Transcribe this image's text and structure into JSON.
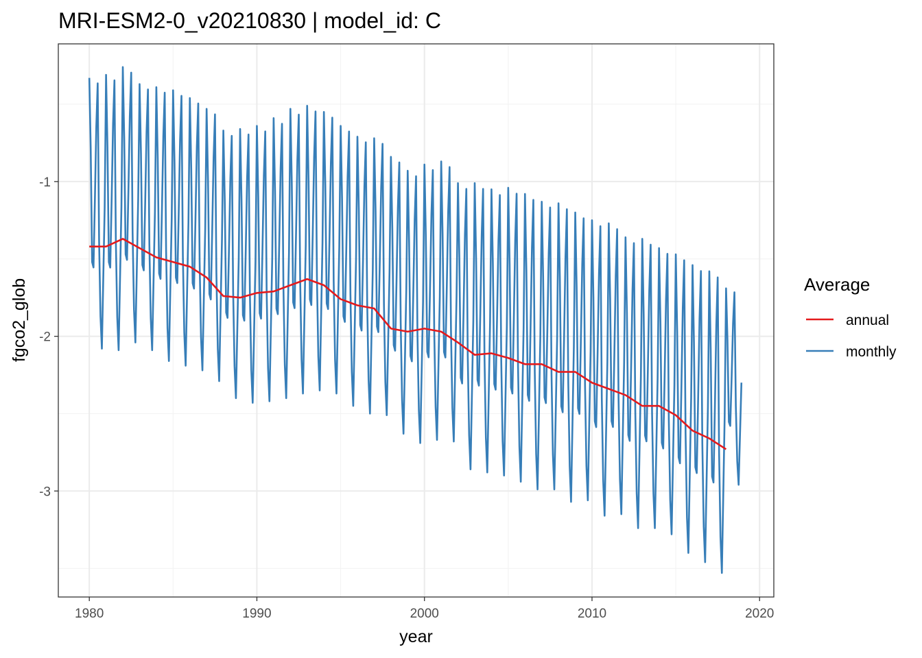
{
  "chart_data": {
    "type": "line",
    "title": "MRI-ESM2-0_v20210830 | model_id: C",
    "xlabel": "year",
    "ylabel": "fgco2_glob",
    "xlim": [
      1978.15,
      2020.85
    ],
    "ylim": [
      -3.685,
      -0.11
    ],
    "x_ticks": [
      1980,
      1990,
      2000,
      2010,
      2020
    ],
    "x_tick_labels": [
      "1980",
      "1990",
      "2000",
      "2010",
      "2020"
    ],
    "y_ticks": [
      -1,
      -2,
      -3
    ],
    "y_tick_labels": [
      "-1",
      "-2",
      "-3"
    ],
    "grid": true,
    "legend": {
      "title": "Average",
      "position": "right",
      "entries": [
        {
          "label": "annual",
          "color": "#e41a1c"
        },
        {
          "label": "monthly",
          "color": "#377eb8"
        }
      ]
    },
    "monthly_shape": [
      1.0,
      0.74,
      0.32,
      0.3,
      0.55,
      0.82,
      0.98,
      0.4,
      0.12,
      0.0,
      0.26,
      0.52
    ],
    "series": [
      {
        "name": "annual",
        "color": "#e41a1c",
        "x": [
          1980,
          1981,
          1982,
          1983,
          1984,
          1985,
          1986,
          1987,
          1988,
          1989,
          1990,
          1991,
          1992,
          1993,
          1994,
          1995,
          1996,
          1997,
          1998,
          1999,
          2000,
          2001,
          2002,
          2003,
          2004,
          2005,
          2006,
          2007,
          2008,
          2009,
          2010,
          2011,
          2012,
          2013,
          2014,
          2015,
          2016,
          2017,
          2018
        ],
        "values": [
          -1.42,
          -1.42,
          -1.37,
          -1.43,
          -1.49,
          -1.52,
          -1.55,
          -1.62,
          -1.74,
          -1.75,
          -1.72,
          -1.71,
          -1.67,
          -1.63,
          -1.67,
          -1.76,
          -1.8,
          -1.82,
          -1.95,
          -1.97,
          -1.95,
          -1.97,
          -2.04,
          -2.12,
          -2.11,
          -2.14,
          -2.18,
          -2.18,
          -2.23,
          -2.23,
          -2.3,
          -2.34,
          -2.38,
          -2.45,
          -2.45,
          -2.51,
          -2.61,
          -2.66,
          -2.73
        ]
      },
      {
        "name": "monthly",
        "color": "#377eb8",
        "year_start": 1980,
        "months_per_year": 12,
        "annual_peaks": [
          -0.33,
          -0.31,
          -0.26,
          -0.37,
          -0.39,
          -0.41,
          -0.46,
          -0.53,
          -0.67,
          -0.66,
          -0.64,
          -0.59,
          -0.53,
          -0.51,
          -0.55,
          -0.64,
          -0.71,
          -0.72,
          -0.84,
          -0.93,
          -0.89,
          -0.87,
          -1.01,
          -1.01,
          -1.05,
          -1.04,
          -1.08,
          -1.13,
          -1.14,
          -1.2,
          -1.25,
          -1.27,
          -1.36,
          -1.37,
          -1.43,
          -1.47,
          -1.54,
          -1.58,
          -1.69
        ],
        "annual_troughs": [
          -2.08,
          -2.09,
          -2.04,
          -2.09,
          -2.16,
          -2.19,
          -2.22,
          -2.29,
          -2.4,
          -2.43,
          -2.42,
          -2.4,
          -2.37,
          -2.35,
          -2.37,
          -2.45,
          -2.5,
          -2.51,
          -2.63,
          -2.69,
          -2.67,
          -2.68,
          -2.86,
          -2.88,
          -2.9,
          -2.94,
          -2.99,
          -2.99,
          -3.07,
          -3.06,
          -3.16,
          -3.15,
          -3.24,
          -3.24,
          -3.28,
          -3.4,
          -3.46,
          -3.53,
          -2.96
        ]
      }
    ]
  }
}
